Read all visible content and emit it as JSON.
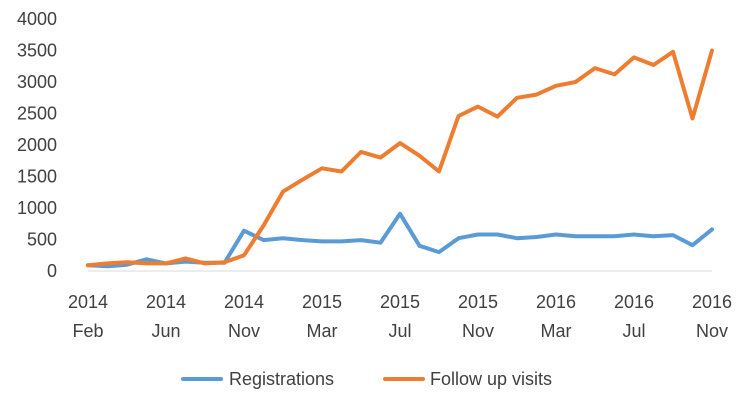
{
  "chart_data": {
    "type": "line",
    "title": "",
    "xlabel": "",
    "ylabel": "",
    "ylim": [
      0,
      4000
    ],
    "yticks": [
      0,
      500,
      1000,
      1500,
      2000,
      2500,
      3000,
      3500,
      4000
    ],
    "grid": false,
    "legend_position": "bottom",
    "x_tick_labels": [
      {
        "year": "2014",
        "month": "Feb"
      },
      {
        "year": "2014",
        "month": "Jun"
      },
      {
        "year": "2014",
        "month": "Nov"
      },
      {
        "year": "2015",
        "month": "Mar"
      },
      {
        "year": "2015",
        "month": "Jul"
      },
      {
        "year": "2015",
        "month": "Nov"
      },
      {
        "year": "2016",
        "month": "Mar"
      },
      {
        "year": "2016",
        "month": "Jul"
      },
      {
        "year": "2016",
        "month": "Nov"
      }
    ],
    "x": [
      "2014-02",
      "2014-03",
      "2014-04",
      "2014-05",
      "2014-06",
      "2014-07",
      "2014-08",
      "2014-09",
      "2014-10",
      "2014-11",
      "2014-12",
      "2015-01",
      "2015-02",
      "2015-03",
      "2015-04",
      "2015-05",
      "2015-06",
      "2015-07",
      "2015-08",
      "2015-09",
      "2015-10",
      "2015-11",
      "2015-12",
      "2016-01",
      "2016-02",
      "2016-03",
      "2016-04",
      "2016-05",
      "2016-06",
      "2016-07",
      "2016-08",
      "2016-09",
      "2016-10",
      "2016-11"
    ],
    "series": [
      {
        "name": "Registrations",
        "color": "#5B9BD5",
        "values": [
          90,
          75,
          100,
          185,
          120,
          150,
          130,
          130,
          640,
          490,
          520,
          490,
          470,
          470,
          490,
          450,
          910,
          400,
          300,
          520,
          580,
          580,
          520,
          540,
          580,
          550,
          550,
          550,
          580,
          550,
          570,
          410,
          660,
          null
        ]
      },
      {
        "name": "Follow up visits",
        "color": "#ED7D31",
        "values": [
          90,
          120,
          140,
          120,
          120,
          200,
          120,
          140,
          250,
          720,
          1260,
          1450,
          1630,
          1580,
          1890,
          1800,
          2030,
          1830,
          1580,
          2460,
          2610,
          2450,
          2750,
          2800,
          2940,
          3000,
          3220,
          3120,
          3390,
          3270,
          3480,
          2420,
          3500,
          null
        ]
      }
    ]
  }
}
